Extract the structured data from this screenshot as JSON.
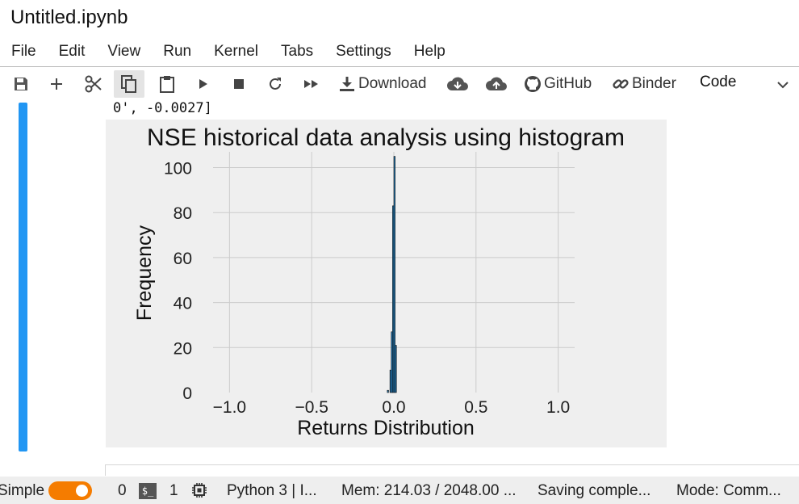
{
  "window": {
    "title": "Untitled.ipynb"
  },
  "menu": [
    "File",
    "Edit",
    "View",
    "Run",
    "Kernel",
    "Tabs",
    "Settings",
    "Help"
  ],
  "toolbar": {
    "download_label": "Download",
    "github_label": "GitHub",
    "binder_label": "Binder",
    "cell_type": "Code",
    "icons": [
      "save-icon",
      "add-icon",
      "cut-icon",
      "copy-icon",
      "paste-icon",
      "run-icon",
      "stop-icon",
      "restart-icon",
      "fast-forward-icon",
      "download-icon",
      "cloud-download-icon",
      "cloud-upload-icon",
      "github-icon",
      "binder-icon",
      "chevron-down-icon"
    ]
  },
  "cell": {
    "output_text": "0', -0.0027]"
  },
  "chart_data": {
    "type": "bar",
    "title": "NSE historical data analysis using histogram",
    "xlabel": "Returns Distribution",
    "ylabel": "Frequency",
    "xlim": [
      -1.1,
      1.1
    ],
    "ylim": [
      0,
      107
    ],
    "xticks": [
      -1.0,
      -0.5,
      0.0,
      0.5,
      1.0
    ],
    "xtick_labels": [
      "−1.0",
      "−0.5",
      "0.0",
      "0.5",
      "1.0"
    ],
    "yticks": [
      0,
      20,
      40,
      60,
      80,
      100
    ],
    "ytick_labels": [
      "0",
      "20",
      "40",
      "60",
      "80",
      "100"
    ],
    "grid": true,
    "bar_color": "#1f77b4",
    "bins": [
      {
        "x0": -0.04,
        "x1": -0.032,
        "value": 1
      },
      {
        "x0": -0.024,
        "x1": -0.016,
        "value": 10
      },
      {
        "x0": -0.016,
        "x1": -0.008,
        "value": 27
      },
      {
        "x0": -0.008,
        "x1": 0.0,
        "value": 83
      },
      {
        "x0": 0.0,
        "x1": 0.008,
        "value": 105
      },
      {
        "x0": 0.008,
        "x1": 0.016,
        "value": 21
      }
    ]
  },
  "status": {
    "mode_label": "Simple",
    "terminals": "0",
    "kernels": "1",
    "kernel": "Python 3 | I...",
    "memory": "Mem: 214.03 / 2048.00 ...",
    "saving": "Saving comple...",
    "mode": "Mode: Comm..."
  },
  "colors": {
    "accent": "#2196f3",
    "toggle": "#f57c00"
  }
}
